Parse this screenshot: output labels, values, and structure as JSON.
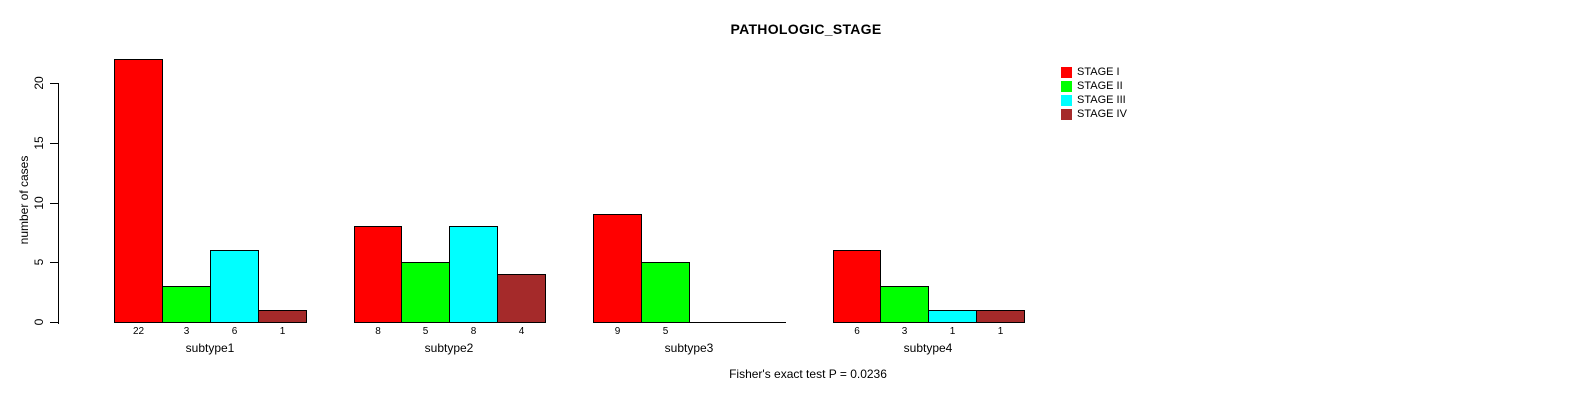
{
  "title": "PATHOLOGIC_STAGE",
  "y_axis": {
    "label": "number of cases"
  },
  "footer": {
    "caption": "Fisher's exact test P = 0.0236"
  },
  "legend": {
    "items": [
      {
        "label": "STAGE I",
        "color": "#FF0000"
      },
      {
        "label": "STAGE II",
        "color": "#00FF00"
      },
      {
        "label": "STAGE III",
        "color": "#00FFFF"
      },
      {
        "label": "STAGE IV",
        "color": "#A52A2A"
      }
    ]
  },
  "chart_data": {
    "type": "bar",
    "title": "PATHOLOGIC_STAGE",
    "xlabel": "",
    "ylabel": "number of cases",
    "categories": [
      "subtype1",
      "subtype2",
      "subtype3",
      "subtype4"
    ],
    "series": [
      {
        "name": "STAGE I",
        "color": "#FF0000",
        "values": [
          22,
          8,
          9,
          6
        ]
      },
      {
        "name": "STAGE II",
        "color": "#00FF00",
        "values": [
          3,
          5,
          5,
          3
        ]
      },
      {
        "name": "STAGE III",
        "color": "#00FFFF",
        "values": [
          6,
          8,
          0,
          1
        ]
      },
      {
        "name": "STAGE IV",
        "color": "#A52A2A",
        "values": [
          1,
          4,
          0,
          1
        ]
      }
    ],
    "ylim": [
      0,
      22
    ],
    "yticks": [
      0,
      5,
      10,
      15,
      20
    ],
    "grid": false,
    "legend_position": "top-right",
    "bar_border_color": "#000000",
    "show_value_labels_under_bars": true,
    "zero_height_bars_drawn_as_baseline": true,
    "annotation": "Fisher's exact test P = 0.0236"
  }
}
